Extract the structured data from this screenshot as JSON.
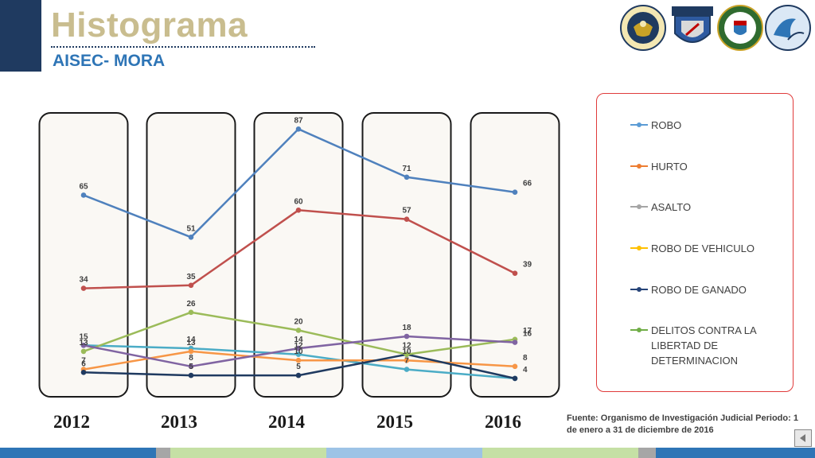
{
  "header": {
    "title": "Histograma",
    "subtitle": "AISEC- MORA"
  },
  "logos": [
    {
      "name": "us-embassy-seal-icon",
      "lines": [
        "UNITED STATES OF AMERICA",
        "EMBASSY"
      ]
    },
    {
      "name": "fuerza-publica-shield-icon",
      "lines": [
        "FUERZA PÚBLICA"
      ]
    },
    {
      "name": "national-coat-of-arms-icon",
      "lines": [
        "DIOS Y PATRIA"
      ]
    },
    {
      "name": "aisec-logo-icon",
      "lines": [
        "AISEC"
      ]
    }
  ],
  "chart_data": {
    "type": "line",
    "categories": [
      "2012",
      "2013",
      "2014",
      "2015",
      "2016"
    ],
    "ylim": [
      0,
      90
    ],
    "grid": false,
    "legend_placement": "right",
    "series": [
      {
        "name": "ROBO",
        "color": "#4f81bd",
        "values": [
          65,
          51,
          87,
          71,
          66
        ],
        "labels": [
          "65",
          "51",
          "87",
          "71",
          "66"
        ]
      },
      {
        "name": "HURTO",
        "color": "#c0504d",
        "values": [
          34,
          35,
          60,
          57,
          39
        ],
        "labels": [
          "34",
          "35",
          "60",
          "57",
          "39"
        ]
      },
      {
        "name": "ASALTO",
        "color": "#4bacc6",
        "values": [
          15,
          14,
          12,
          7,
          4
        ],
        "labels": [
          "15",
          "14",
          "12",
          "7",
          "4"
        ]
      },
      {
        "name": "ROBO DE VEHICULO",
        "color": "#f79646",
        "values": [
          7,
          13,
          10,
          10,
          8
        ],
        "labels": [
          "7",
          "13",
          "10",
          "10",
          "8"
        ]
      },
      {
        "name": "ROBO DE GANADO",
        "color": "#1f3a60",
        "values": [
          6,
          5,
          5,
          12,
          4
        ],
        "labels": [
          "6",
          "5",
          "5",
          "12",
          ""
        ]
      },
      {
        "name": "DELITOS CONTRA LA LIBERTAD DE DETERMINACION",
        "color": "#9bbb59",
        "values": [
          13,
          26,
          20,
          12,
          17
        ],
        "labels": [
          "13",
          "26",
          "20",
          "",
          "17"
        ]
      },
      {
        "name": "",
        "color": "#8064a2",
        "values": [
          15,
          8,
          14,
          18,
          16
        ],
        "labels": [
          "",
          "8",
          "14",
          "18",
          "16"
        ]
      }
    ]
  },
  "legend": {
    "items": [
      {
        "label": "ROBO",
        "color": "#5b9bd5"
      },
      {
        "label": "HURTO",
        "color": "#ed7d31"
      },
      {
        "label": "ASALTO",
        "color": "#a5a5a5"
      },
      {
        "label": "ROBO DE VEHICULO",
        "color": "#ffc000"
      },
      {
        "label": "ROBO DE GANADO",
        "color": "#264478"
      },
      {
        "label": "DELITOS CONTRA LA LIBERTAD DE DETERMINACION",
        "color": "#70ad47"
      }
    ]
  },
  "source": {
    "text": "Fuente: Organismo de Investigación Judicial Periodo: 1 de enero a 31 de diciembre de 2016"
  },
  "footer": {
    "segments": [
      {
        "color": "#2e75b6"
      },
      {
        "color": "#a6a6a6"
      },
      {
        "color": "#c5e0a5"
      },
      {
        "color": "#9dc3e6"
      },
      {
        "color": "#c5e0a5"
      },
      {
        "color": "#a6a6a6"
      },
      {
        "color": "#2e75b6"
      }
    ]
  }
}
